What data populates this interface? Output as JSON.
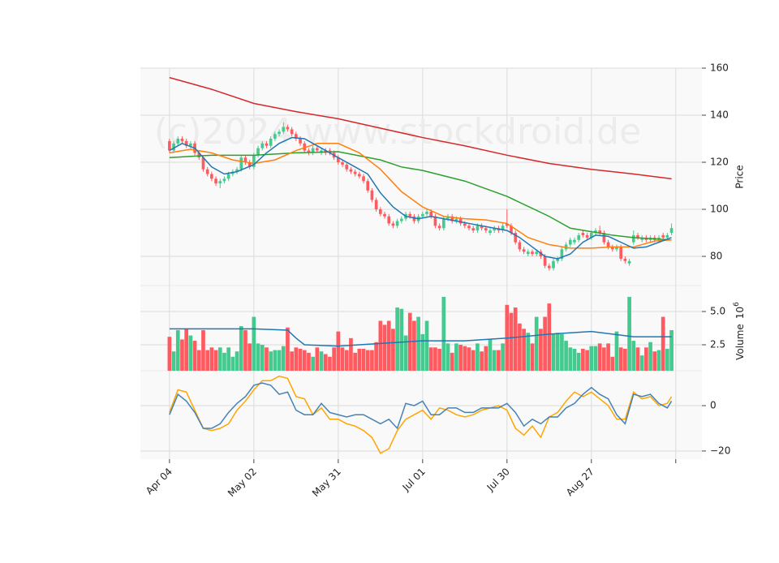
{
  "chart_data": [
    {
      "type": "candlestick",
      "ylabel": "Price",
      "watermark": "(c)2024 www.stockdroid.de",
      "up_color": "#44c98e",
      "down_color": "#ff5a5f",
      "grid": true,
      "ylim": [
        67.6,
        160
      ],
      "yticks": [
        80,
        100,
        120,
        140,
        160
      ],
      "open": [
        129,
        125,
        128,
        130,
        129,
        127,
        128,
        124,
        122,
        117,
        115,
        113,
        111,
        112,
        113,
        115,
        116,
        117,
        122,
        120,
        118,
        123,
        126,
        128,
        127,
        130,
        132,
        133,
        135,
        134,
        132,
        130,
        128,
        125,
        124,
        126,
        124,
        125,
        125,
        124,
        122,
        120,
        119,
        117,
        116,
        115,
        114,
        112,
        108,
        104,
        100,
        98,
        97,
        94,
        93,
        95,
        96,
        98,
        97,
        95,
        97,
        98,
        99,
        97,
        93,
        92,
        96,
        97,
        95,
        96,
        94,
        93,
        92,
        91,
        93,
        92,
        90,
        91,
        92,
        91,
        94,
        93,
        90,
        86,
        83,
        81,
        82,
        81,
        82,
        80,
        76,
        75,
        78,
        79,
        83,
        85,
        86,
        87,
        90,
        89,
        88,
        90,
        91,
        90,
        86,
        84,
        83,
        84,
        79,
        77,
        86,
        89,
        87,
        88,
        87,
        88,
        87,
        89,
        88,
        90
      ],
      "high": [
        130,
        129,
        131,
        131,
        130,
        129,
        129,
        125,
        123,
        118,
        116,
        114,
        113,
        114,
        116,
        117,
        118,
        123,
        123,
        121,
        124,
        127,
        129,
        129,
        131,
        133,
        134,
        137,
        136,
        135,
        133,
        131,
        129,
        126,
        127,
        127,
        126,
        126,
        126,
        125,
        123,
        121,
        120,
        118,
        117,
        116,
        115,
        113,
        109,
        105,
        101,
        99,
        98,
        95,
        96,
        97,
        99,
        99,
        98,
        98,
        99,
        100,
        100,
        98,
        94,
        97,
        98,
        98,
        97,
        97,
        95,
        94,
        93,
        94,
        94,
        93,
        92,
        93,
        93,
        94,
        100,
        94,
        91,
        87,
        84,
        83,
        83,
        83,
        83,
        81,
        77,
        79,
        80,
        84,
        86,
        88,
        88,
        90,
        91,
        90,
        91,
        92,
        93,
        91,
        87,
        85,
        85,
        85,
        80,
        79,
        91,
        90,
        89,
        89,
        89,
        89,
        89,
        90,
        90,
        94
      ],
      "low": [
        124,
        124,
        127,
        128,
        126,
        126,
        123,
        121,
        116,
        114,
        112,
        110,
        109,
        111,
        112,
        114,
        115,
        116,
        119,
        117,
        117,
        122,
        125,
        126,
        126,
        129,
        131,
        132,
        133,
        131,
        129,
        127,
        124,
        123,
        123,
        124,
        123,
        123,
        123,
        121,
        119,
        118,
        116,
        115,
        114,
        113,
        111,
        107,
        103,
        99,
        97,
        96,
        93,
        92,
        92,
        94,
        95,
        96,
        94,
        94,
        96,
        97,
        96,
        92,
        91,
        91,
        95,
        94,
        94,
        93,
        92,
        91,
        90,
        90,
        91,
        90,
        89,
        90,
        90,
        90,
        92,
        89,
        85,
        82,
        81,
        80,
        80,
        80,
        79,
        75,
        74,
        74,
        77,
        78,
        82,
        84,
        85,
        86,
        88,
        87,
        87,
        89,
        89,
        85,
        83,
        82,
        82,
        78,
        77,
        76,
        85,
        87,
        86,
        86,
        86,
        86,
        86,
        87,
        87,
        89
      ],
      "close": [
        125,
        128,
        130,
        129,
        127,
        128,
        124,
        122,
        117,
        115,
        113,
        111,
        112,
        113,
        115,
        116,
        117,
        122,
        120,
        118,
        123,
        126,
        128,
        127,
        130,
        132,
        133,
        135,
        134,
        132,
        130,
        128,
        125,
        124,
        126,
        125,
        125,
        124,
        124,
        122,
        120,
        119,
        117,
        116,
        115,
        114,
        112,
        108,
        104,
        100,
        98,
        97,
        94,
        93,
        95,
        96,
        98,
        97,
        95,
        97,
        98,
        99,
        97,
        93,
        92,
        96,
        97,
        95,
        96,
        94,
        93,
        92,
        91,
        93,
        92,
        91,
        91,
        92,
        91,
        93,
        93,
        90,
        86,
        83,
        82,
        82,
        81,
        82,
        80,
        76,
        75,
        78,
        79,
        83,
        85,
        87,
        87,
        89,
        89,
        88,
        90,
        91,
        90,
        86,
        84,
        83,
        84,
        79,
        78,
        78,
        89,
        88,
        88,
        87,
        88,
        87,
        88,
        88,
        89,
        92
      ],
      "series": [
        {
          "color": "#d62728",
          "x": [
            0,
            10,
            20,
            30,
            40,
            50,
            60,
            70,
            80,
            90,
            100,
            110,
            119
          ],
          "values": [
            156,
            151,
            145,
            141.5,
            138.5,
            134.5,
            130.5,
            127,
            123,
            119.5,
            117,
            115,
            113
          ]
        },
        {
          "color": "#2ca02c",
          "x": [
            0,
            10,
            20,
            30,
            40,
            50,
            55,
            60,
            70,
            80,
            90,
            95,
            100,
            105,
            110,
            119
          ],
          "values": [
            122,
            123,
            123,
            124,
            124.5,
            121,
            118,
            116.5,
            112,
            105.5,
            97,
            92,
            90.5,
            89,
            88,
            87
          ]
        },
        {
          "color": "#ff7f0e",
          "x": [
            0,
            5,
            10,
            15,
            20,
            25,
            30,
            35,
            40,
            45,
            50,
            55,
            60,
            65,
            70,
            75,
            80,
            85,
            90,
            95,
            100,
            105,
            110,
            115,
            119
          ],
          "values": [
            124,
            125.5,
            124,
            121,
            119.5,
            121,
            125,
            128,
            128,
            124,
            117,
            107.5,
            101,
            97,
            96,
            95.5,
            94,
            88,
            85,
            83.5,
            83.5,
            84,
            84,
            86.5,
            87
          ]
        },
        {
          "color": "#1f77b4",
          "x": [
            0,
            3,
            6,
            10,
            13,
            16,
            20,
            23,
            26,
            29,
            32,
            35,
            38,
            41,
            44,
            47,
            50,
            53,
            56,
            59,
            62,
            65,
            68,
            71,
            74,
            77,
            80,
            83,
            86,
            89,
            92,
            95,
            98,
            101,
            104,
            107,
            110,
            113,
            116,
            119
          ],
          "values": [
            125,
            128,
            126,
            118,
            115,
            116,
            119,
            124,
            128,
            130.5,
            130,
            127,
            124,
            121,
            118,
            115,
            107,
            101,
            97,
            96,
            97,
            96,
            95,
            94,
            93,
            92,
            91,
            88,
            84,
            80,
            79,
            81,
            86,
            89,
            88.5,
            86,
            83.5,
            84,
            86,
            88
          ]
        }
      ]
    },
    {
      "type": "volume",
      "ylabel": "Volume",
      "scale_base": 10,
      "scale_exponent": 6,
      "grid": true,
      "ylim": [
        0.55,
        6.95
      ],
      "yticks": [
        {
          "value": 2.5,
          "label": "2.5"
        },
        {
          "value": 5,
          "label": "5.0"
        }
      ],
      "values": [
        3.1,
        2.0,
        3.6,
        2.9,
        3.7,
        3.2,
        2.8,
        2.1,
        3.6,
        2.1,
        2.3,
        2.1,
        2.3,
        1.9,
        2.3,
        1.6,
        2.0,
        3.9,
        3.6,
        2.6,
        4.6,
        2.6,
        2.5,
        2.3,
        2.0,
        2.1,
        2.1,
        2.4,
        3.8,
        2.0,
        2.3,
        2.2,
        2.1,
        1.9,
        1.6,
        2.3,
        2.0,
        1.8,
        1.6,
        2.3,
        3.5,
        2.3,
        2.1,
        3.0,
        1.9,
        2.2,
        2.2,
        2.1,
        2.1,
        2.7,
        4.3,
        4.0,
        4.3,
        3.7,
        5.3,
        5.2,
        3.2,
        4.9,
        4.3,
        4.6,
        3.3,
        4.3,
        2.3,
        2.3,
        2.2,
        6.1,
        2.6,
        1.9,
        2.6,
        2.5,
        2.4,
        2.3,
        2.1,
        2.6,
        2.0,
        2.4,
        2.9,
        2.1,
        2.1,
        2.6,
        5.5,
        4.9,
        5.3,
        4.1,
        3.7,
        3.4,
        2.6,
        4.6,
        3.7,
        4.6,
        5.6,
        3.3,
        3.4,
        3.3,
        2.8,
        2.3,
        2.2,
        1.9,
        2.2,
        2.1,
        2.4,
        2.4,
        2.6,
        2.3,
        2.6,
        1.6,
        3.5,
        2.3,
        2.2,
        6.1,
        2.8,
        2.3,
        1.7,
        2.3,
        2.7,
        2.0,
        2.1,
        4.6,
        2.2,
        3.6
      ],
      "series": [
        {
          "color": "#1f77b4",
          "x": [
            0,
            10,
            20,
            28,
            30,
            32,
            40,
            50,
            60,
            70,
            80,
            90,
            100,
            110,
            119
          ],
          "values": [
            3.7,
            3.7,
            3.7,
            3.6,
            3.0,
            2.5,
            2.4,
            2.6,
            2.8,
            2.8,
            3.0,
            3.3,
            3.5,
            3.1,
            3.1
          ]
        }
      ]
    },
    {
      "type": "line",
      "grid": true,
      "xlim": [
        -6.9,
        126.2
      ],
      "xticks": [
        {
          "value": 0,
          "label": "Apr 04"
        },
        {
          "value": 20,
          "label": "May 02"
        },
        {
          "value": 40,
          "label": "May 31"
        },
        {
          "value": 60,
          "label": "Jul 01"
        },
        {
          "value": 80,
          "label": "Jul 30"
        },
        {
          "value": 100,
          "label": "Aug 27"
        },
        {
          "value": 120,
          "label": null
        }
      ],
      "ylim": [
        -23.6,
        15.4
      ],
      "yticks": [
        {
          "value": -20,
          "label": "−20"
        },
        0
      ],
      "x": [
        0,
        2,
        4,
        6,
        8,
        10,
        12,
        14,
        16,
        18,
        20,
        22,
        24,
        26,
        28,
        30,
        32,
        34,
        36,
        38,
        40,
        42,
        44,
        46,
        48,
        50,
        52,
        54,
        56,
        58,
        60,
        62,
        64,
        66,
        68,
        70,
        72,
        74,
        76,
        78,
        80,
        82,
        84,
        86,
        88,
        90,
        92,
        94,
        96,
        98,
        100,
        102,
        104,
        106,
        108,
        110,
        112,
        114,
        116,
        118,
        119
      ],
      "series": [
        {
          "color": "#ffa500",
          "values": [
            -3,
            7,
            6,
            -2,
            -10,
            -11,
            -10,
            -8,
            -2,
            2,
            7,
            11,
            11,
            13,
            12,
            4,
            3,
            -4,
            -1,
            -6,
            -6,
            -8,
            -9,
            -11,
            -14,
            -21,
            -19,
            -11,
            -6,
            -4,
            -2,
            -6,
            -1,
            -2,
            -4,
            -5,
            -4,
            -2,
            -1,
            0,
            -2,
            -10,
            -13,
            -9,
            -14,
            -5,
            -3,
            2,
            6,
            4,
            6,
            3,
            0,
            -6,
            -6,
            6,
            3,
            4,
            0,
            1,
            4
          ]
        },
        {
          "color": "#4682b4",
          "values": [
            -4,
            5,
            2,
            -3,
            -10,
            -10,
            -8,
            -3,
            1,
            4,
            9,
            10,
            9,
            5,
            6,
            -2,
            -4,
            -4,
            1,
            -3,
            -4,
            -5,
            -4,
            -4,
            -6,
            -8,
            -6,
            -10,
            1,
            0,
            2,
            -4,
            -4,
            -1,
            -1,
            -3,
            -3,
            -1,
            -1,
            -1,
            1,
            -3,
            -9,
            -6,
            -8,
            -5,
            -5,
            -1,
            1,
            5,
            8,
            5,
            3,
            -4,
            -8,
            5,
            4,
            5,
            1,
            -1,
            2
          ]
        }
      ]
    }
  ]
}
